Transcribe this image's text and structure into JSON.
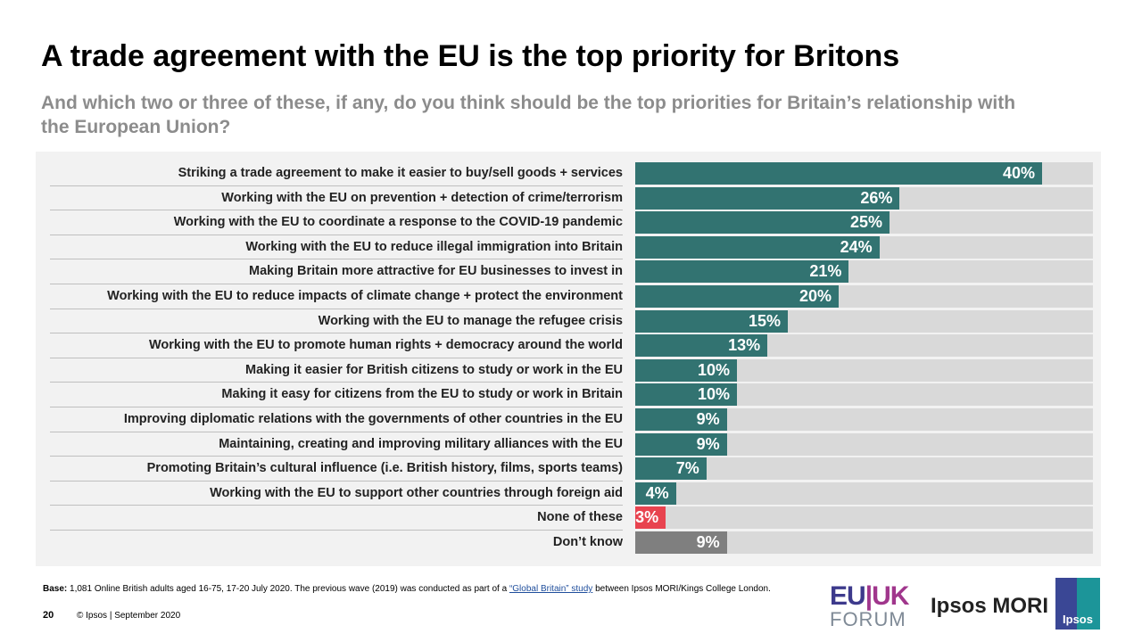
{
  "title": "A trade agreement with the EU is the top priority for Britons",
  "subtitle": "And which two or three of these, if any, do you think should be the top priorities for Britain’s relationship with the European Union?",
  "chart_data": {
    "type": "bar",
    "orientation": "horizontal",
    "xlim": [
      0,
      45
    ],
    "grid": false,
    "categories": [
      "Striking a trade agreement to make it easier to buy/sell goods + services",
      "Working with the EU on prevention + detection of crime/terrorism",
      "Working with the EU to coordinate a response to the  COVID-19 pandemic",
      "Working with the EU to reduce illegal immigration into Britain",
      "Making Britain more attractive for EU businesses to invest in",
      "Working with the EU to reduce impacts of climate change +  protect the environment",
      "Working with the EU to manage the refugee crisis",
      "Working with the EU to promote human rights + democracy around the world",
      "Making it easier for British citizens to study or work in the EU",
      "Making it easy for citizens from the EU to study or work in Britain",
      "Improving diplomatic relations with the governments of other countries in the EU",
      "Maintaining, creating and improving military alliances with the EU",
      "Promoting Britain’s cultural influence (i.e. British history, films, sports teams)",
      "Working with the EU to support other countries through foreign aid",
      "None of these",
      "Don’t know"
    ],
    "values": [
      40,
      26,
      25,
      24,
      21,
      20,
      15,
      13,
      10,
      10,
      9,
      9,
      7,
      4,
      3,
      9
    ],
    "labels": [
      "40%",
      "26%",
      "25%",
      "24%",
      "21%",
      "20%",
      "15%",
      "13%",
      "10%",
      "10%",
      "9%",
      "9%",
      "7%",
      "4%",
      "3%",
      "9%"
    ],
    "colors": [
      "#327371",
      "#327371",
      "#327371",
      "#327371",
      "#327371",
      "#327371",
      "#327371",
      "#327371",
      "#327371",
      "#327371",
      "#327371",
      "#327371",
      "#327371",
      "#327371",
      "#e8434f",
      "#7f7f7f"
    ],
    "track_color": "#d9d9d9"
  },
  "footer": {
    "base_label": "Base:",
    "base_text": " 1,081 Online British adults aged 16-75, 17-20 July 2020. The previous wave (2019) was conducted as part of a ",
    "link": "“Global Britain” study",
    "base_end": " between Ipsos MORI/Kings  College London.",
    "page": "20",
    "copyright": "© Ipsos | September 2020"
  },
  "logos": {
    "euuk_eu": "EU",
    "euuk_uk": "|UK",
    "forum": "FORUM",
    "ipsos_mori": "Ipsos MORI",
    "ipsos": "Ipsos"
  }
}
